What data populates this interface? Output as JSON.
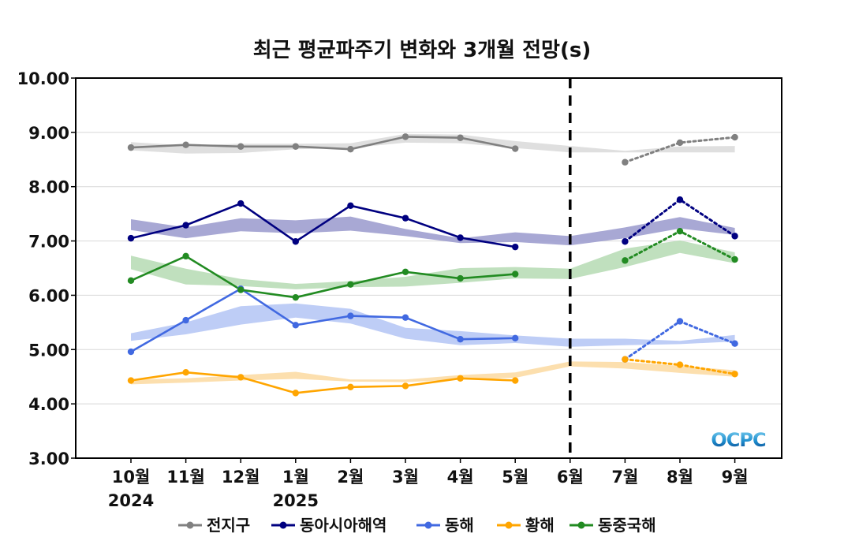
{
  "chart_data": {
    "type": "line",
    "title": "최근 평균파주기 변화와 3개월 전망(s)",
    "xlabel": "",
    "ylabel": "",
    "ylim": [
      3.0,
      10.0
    ],
    "yticks": [
      "3.00",
      "4.00",
      "5.00",
      "6.00",
      "7.00",
      "8.00",
      "9.00",
      "10.00"
    ],
    "categories": [
      "10월",
      "11월",
      "12월",
      "1월",
      "2월",
      "3월",
      "4월",
      "5월",
      "6월",
      "7월",
      "8월",
      "9월"
    ],
    "year_labels": [
      {
        "index": 0,
        "text": "2024"
      },
      {
        "index": 3,
        "text": "2025"
      }
    ],
    "forecast_divider_index": 8,
    "grid": true,
    "legend_position": "bottom",
    "logo_text": "OCPC",
    "series": [
      {
        "name": "전지구",
        "color": "#808080",
        "band_color": "#d9d9d9",
        "observed": [
          8.72,
          8.77,
          8.74,
          8.74,
          8.69,
          8.92,
          8.9,
          8.7
        ],
        "forecast_index_start": 9,
        "forecast": [
          8.45,
          8.81,
          8.91
        ],
        "band_low": [
          8.67,
          8.61,
          8.62,
          8.69,
          8.71,
          8.81,
          8.8,
          8.71,
          8.63,
          8.63,
          8.63,
          8.63
        ],
        "band_high": [
          8.82,
          8.76,
          8.79,
          8.79,
          8.8,
          8.97,
          8.96,
          8.84,
          8.75,
          8.66,
          8.74,
          8.75
        ]
      },
      {
        "name": "동아시아해역",
        "color": "#000080",
        "band_color": "#9999cc",
        "observed": [
          7.05,
          7.29,
          7.69,
          6.99,
          7.65,
          7.42,
          7.06,
          6.89
        ],
        "forecast_index_start": 9,
        "forecast": [
          6.99,
          7.76,
          7.09
        ],
        "band_low": [
          7.2,
          7.05,
          7.18,
          7.14,
          7.19,
          7.09,
          6.96,
          6.98,
          6.92,
          7.05,
          7.23,
          7.11
        ],
        "band_high": [
          7.4,
          7.25,
          7.42,
          7.38,
          7.45,
          7.22,
          7.05,
          7.16,
          7.09,
          7.25,
          7.44,
          7.24
        ]
      },
      {
        "name": "동해",
        "color": "#4169e1",
        "band_color": "#b3c4f5",
        "observed": [
          4.96,
          5.54,
          6.12,
          5.45,
          5.62,
          5.59,
          5.19,
          5.21
        ],
        "forecast_index_start": 9,
        "forecast": [
          4.82,
          5.52,
          5.11
        ],
        "band_low": [
          5.16,
          5.28,
          5.46,
          5.59,
          5.48,
          5.2,
          5.08,
          5.12,
          5.05,
          5.08,
          5.1,
          5.15
        ],
        "band_high": [
          5.3,
          5.5,
          5.8,
          5.85,
          5.75,
          5.4,
          5.34,
          5.26,
          5.2,
          5.2,
          5.16,
          5.27
        ]
      },
      {
        "name": "황해",
        "color": "#ffa500",
        "band_color": "#fcd9a0",
        "observed": [
          4.43,
          4.58,
          4.49,
          4.2,
          4.31,
          4.33,
          4.47,
          4.43
        ],
        "forecast_index_start": 9,
        "forecast": [
          4.82,
          4.72,
          4.55
        ],
        "band_low": [
          4.36,
          4.39,
          4.43,
          4.46,
          4.41,
          4.4,
          4.45,
          4.48,
          4.69,
          4.65,
          4.57,
          4.5
        ],
        "band_high": [
          4.45,
          4.47,
          4.53,
          4.59,
          4.45,
          4.45,
          4.53,
          4.58,
          4.78,
          4.77,
          4.7,
          4.62
        ]
      },
      {
        "name": "동중국해",
        "color": "#228b22",
        "band_color": "#b5dab3",
        "observed": [
          6.27,
          6.72,
          6.1,
          5.96,
          6.2,
          6.43,
          6.31,
          6.39
        ],
        "forecast_index_start": 9,
        "forecast": [
          6.64,
          7.18,
          6.66
        ],
        "band_low": [
          6.48,
          6.2,
          6.17,
          6.11,
          6.15,
          6.16,
          6.23,
          6.31,
          6.3,
          6.52,
          6.78,
          6.59
        ],
        "band_high": [
          6.73,
          6.49,
          6.3,
          6.21,
          6.26,
          6.34,
          6.5,
          6.52,
          6.49,
          6.86,
          7.01,
          6.79
        ]
      }
    ]
  }
}
